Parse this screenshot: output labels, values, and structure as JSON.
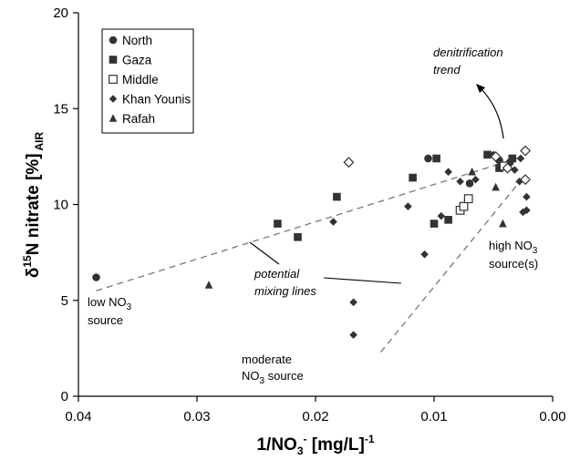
{
  "chart_data": {
    "type": "scatter",
    "x_axis": {
      "title_main": "1/NO",
      "title_sub": "3",
      "title_sup": "-",
      "title_unit": " [mg/L]",
      "title_unit_sup": "-1",
      "range": [
        0.04,
        0.0
      ],
      "reversed": true,
      "ticks": [
        0.04,
        0.03,
        0.02,
        0.01,
        0.0
      ],
      "tick_labels": [
        "0.04",
        "0.03",
        "0.02",
        "0.01",
        "0.00"
      ]
    },
    "y_axis": {
      "title_delta": "δ",
      "title_sup": "15",
      "title_main": "N nitrate [%]",
      "title_sub": " AIR",
      "range": [
        0,
        20
      ],
      "ticks": [
        0,
        5,
        10,
        15,
        20
      ],
      "tick_labels": [
        "0",
        "5",
        "10",
        "15",
        "20"
      ]
    },
    "grid": false,
    "legend_position": "top-left",
    "series": [
      {
        "name": "North",
        "marker": "circle",
        "points": [
          [
            0.0385,
            6.2
          ],
          [
            0.0105,
            12.4
          ],
          [
            0.007,
            11.1
          ],
          [
            0.0045,
            12.3
          ],
          [
            0.0036,
            12.2
          ]
        ]
      },
      {
        "name": "Gaza",
        "marker": "square",
        "points": [
          [
            0.0232,
            9.0
          ],
          [
            0.0215,
            8.3
          ],
          [
            0.0182,
            10.4
          ],
          [
            0.0118,
            11.4
          ],
          [
            0.01,
            9.0
          ],
          [
            0.0088,
            9.2
          ],
          [
            0.0098,
            12.4
          ],
          [
            0.0055,
            12.6
          ],
          [
            0.0045,
            11.9
          ],
          [
            0.0034,
            12.4
          ]
        ]
      },
      {
        "name": "Middle",
        "marker": "square-open",
        "points": [
          [
            0.0078,
            9.7
          ],
          [
            0.0075,
            9.9
          ],
          [
            0.0071,
            10.3
          ],
          [
            0.0041,
            12.0
          ]
        ]
      },
      {
        "name": "Khan Younis",
        "marker": "diamond",
        "points": [
          [
            0.0185,
            9.1
          ],
          [
            0.0168,
            4.9
          ],
          [
            0.0168,
            3.2
          ],
          [
            0.0122,
            9.9
          ],
          [
            0.0108,
            7.4
          ],
          [
            0.0094,
            9.4
          ],
          [
            0.0088,
            11.7
          ],
          [
            0.0078,
            11.2
          ],
          [
            0.0065,
            11.3
          ],
          [
            0.005,
            12.6
          ],
          [
            0.0028,
            11.2
          ],
          [
            0.0025,
            9.6
          ],
          [
            0.0022,
            9.7
          ],
          [
            0.0022,
            10.4
          ],
          [
            0.0027,
            12.4
          ],
          [
            0.0032,
            11.8
          ]
        ]
      },
      {
        "name": "Khan Younis open",
        "marker": "diamond-open",
        "points": [
          [
            0.0172,
            12.2
          ],
          [
            0.0048,
            12.5
          ],
          [
            0.0038,
            11.9
          ],
          [
            0.0023,
            12.8
          ],
          [
            0.0023,
            11.3
          ]
        ]
      },
      {
        "name": "Rafah",
        "marker": "triangle",
        "points": [
          [
            0.029,
            5.8
          ],
          [
            0.0068,
            11.7
          ],
          [
            0.0048,
            10.9
          ],
          [
            0.0042,
            9.0
          ]
        ]
      }
    ],
    "legend": [
      {
        "label": "North",
        "marker": "circle"
      },
      {
        "label": "Gaza",
        "marker": "square"
      },
      {
        "label": "Middle",
        "marker": "square-open"
      },
      {
        "label": "Khan Younis",
        "marker": "diamond"
      },
      {
        "label": "Rafah",
        "marker": "triangle"
      }
    ],
    "mixing_lines": [
      {
        "from": [
          0.0385,
          5.5
        ],
        "to": [
          0.0025,
          12.5
        ]
      },
      {
        "from": [
          0.0145,
          2.3
        ],
        "to": [
          0.0025,
          11.4
        ]
      }
    ],
    "annotations": {
      "denitrification": [
        "denitrification",
        "trend"
      ],
      "potential_mixing": [
        "potential",
        "mixing lines"
      ],
      "low_source": {
        "line1_pre": "low NO",
        "line1_sub": "3",
        "line2": "source"
      },
      "high_source": {
        "line1_pre": "high NO",
        "line1_sub": "3",
        "line2": "source(s)"
      },
      "moderate_source": {
        "line1": "moderate",
        "line2_pre": "NO",
        "line2_sub": "3",
        "line2_post": " source"
      }
    }
  }
}
